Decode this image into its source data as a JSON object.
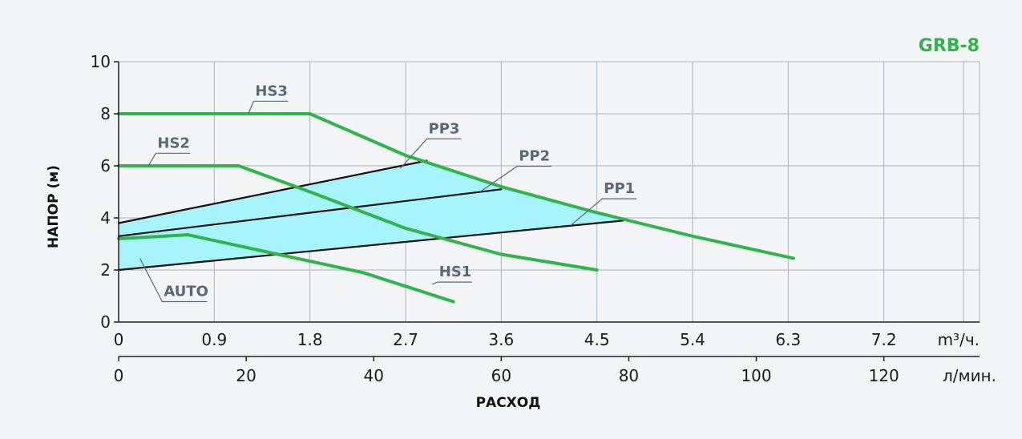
{
  "chart_data": {
    "type": "line",
    "title": "GRB-8",
    "ylabel": "НАПОР (м)",
    "xlabel": "РАСХОД",
    "x_unit_primary": "m³/ч.",
    "x_unit_secondary": "л/мин.",
    "xlim": [
      0,
      8.1
    ],
    "ylim": [
      0,
      10
    ],
    "x_ticks_primary": [
      "0",
      "0.9",
      "1.8",
      "2.7",
      "3.6",
      "4.5",
      "5.4",
      "6.3",
      "7.2"
    ],
    "x_tick_values_primary": [
      0,
      0.9,
      1.8,
      2.7,
      3.6,
      4.5,
      5.4,
      6.3,
      7.2
    ],
    "x_ticks_secondary": [
      "0",
      "20",
      "40",
      "60",
      "80",
      "100",
      "120"
    ],
    "x_tick_values_secondary": [
      0,
      20,
      40,
      60,
      80,
      100,
      120
    ],
    "y_ticks": [
      "0",
      "2",
      "4",
      "6",
      "8",
      "10"
    ],
    "y_tick_values": [
      0,
      2,
      4,
      6,
      8,
      10
    ],
    "grid": true,
    "colors": {
      "curve": "#2fb54a",
      "proportional": "#111111",
      "area_fill": "#a7f4fc",
      "grid": "#aab5bf",
      "title": "#2fb54a",
      "label": "#5a6878",
      "background": "#f3f5f6"
    },
    "series": [
      {
        "name": "HS3",
        "kind": "curve",
        "x": [
          0,
          1.8,
          2.7,
          3.6,
          4.5,
          5.4,
          6.35
        ],
        "y": [
          8,
          8,
          6.4,
          5.2,
          4.2,
          3.3,
          2.45
        ]
      },
      {
        "name": "HS2",
        "kind": "curve",
        "x": [
          0,
          1.13,
          1.8,
          2.7,
          3.6,
          4.5
        ],
        "y": [
          6,
          6,
          5.0,
          3.6,
          2.6,
          2.0
        ]
      },
      {
        "name": "HS1",
        "kind": "curve",
        "x": [
          0,
          0.65,
          1.5,
          2.3,
          3.15
        ],
        "y": [
          3.2,
          3.35,
          2.6,
          1.9,
          0.78
        ]
      },
      {
        "name": "PP3",
        "kind": "proportional",
        "x": [
          0,
          2.9
        ],
        "y": [
          3.8,
          6.2
        ]
      },
      {
        "name": "PP2",
        "kind": "proportional",
        "x": [
          0,
          3.6
        ],
        "y": [
          3.3,
          5.1
        ]
      },
      {
        "name": "PP1",
        "kind": "proportional",
        "x": [
          0,
          4.75
        ],
        "y": [
          2.0,
          3.9
        ]
      }
    ],
    "auto_region": {
      "name": "AUTO",
      "x": [
        0,
        2.9,
        3.6,
        4.5,
        4.75,
        0,
        0
      ],
      "y": [
        3.8,
        6.2,
        5.2,
        4.2,
        3.9,
        2.0,
        3.8
      ]
    },
    "annotations": [
      {
        "text": "HS3",
        "target_x": 1.22,
        "target_y": 8,
        "label_x": 1.27,
        "label_y": 8.7
      },
      {
        "text": "HS2",
        "target_x": 0.28,
        "target_y": 6,
        "label_x": 0.35,
        "label_y": 6.7
      },
      {
        "text": "PP3",
        "target_x": 2.65,
        "target_y": 5.9,
        "label_x": 2.9,
        "label_y": 7.25
      },
      {
        "text": "PP2",
        "target_x": 3.4,
        "target_y": 5.0,
        "label_x": 3.75,
        "label_y": 6.2
      },
      {
        "text": "PP1",
        "target_x": 4.25,
        "target_y": 3.7,
        "label_x": 4.55,
        "label_y": 4.95
      },
      {
        "text": "HS1",
        "target_x": 2.95,
        "target_y": 1.45,
        "label_x": 3.0,
        "label_y": 1.75
      },
      {
        "text": "AUTO",
        "target_x": 0.2,
        "target_y": 2.45,
        "label_x": 0.41,
        "label_y": 1.0
      }
    ]
  }
}
